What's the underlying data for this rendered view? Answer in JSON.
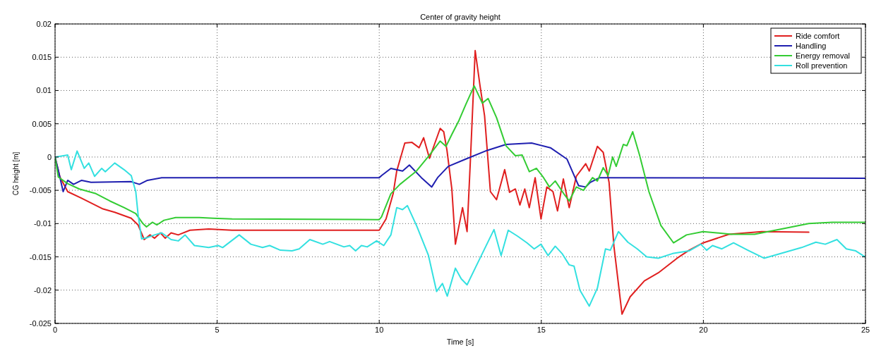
{
  "chart_data": {
    "type": "line",
    "title": "Center of gravity height",
    "xlabel": "Time [s]",
    "ylabel": "CG height [m]",
    "xlim": [
      0,
      25
    ],
    "ylim": [
      -0.025,
      0.02
    ],
    "xticks": [
      0,
      5,
      10,
      15,
      20,
      25
    ],
    "yticks": [
      -0.025,
      -0.02,
      -0.015,
      -0.01,
      -0.005,
      0,
      0.005,
      0.01,
      0.015,
      0.02
    ],
    "grid": true,
    "legend": "top right",
    "line_style": "solid",
    "marker": "none",
    "series": [
      {
        "name": "Ride comfort",
        "color": "#e01f1f",
        "x": [
          0,
          0.15,
          0.39,
          0.82,
          1.48,
          1.84,
          2.35,
          2.56,
          2.75,
          2.93,
          3.07,
          3.25,
          3.4,
          3.58,
          3.8,
          4.16,
          4.74,
          5.46,
          10,
          10.21,
          10.43,
          10.54,
          10.79,
          11.01,
          11.23,
          11.37,
          11.55,
          11.88,
          11.99,
          12.09,
          12.24,
          12.35,
          12.57,
          12.71,
          12.82,
          12.96,
          13.11,
          13.25,
          13.43,
          13.62,
          13.87,
          14.02,
          14.2,
          14.34,
          14.49,
          14.63,
          14.81,
          14.99,
          15.17,
          15.36,
          15.5,
          15.68,
          15.86,
          16.08,
          16.37,
          16.48,
          16.73,
          16.91,
          17.09,
          17.24,
          17.49,
          17.74,
          18.18,
          18.61,
          19.19,
          19.56,
          19.99,
          20.79,
          21.8,
          23.25
        ],
        "values": [
          0,
          -0.003,
          -0.0052,
          -0.0062,
          -0.0078,
          -0.0083,
          -0.0092,
          -0.0102,
          -0.0124,
          -0.0117,
          -0.0122,
          -0.0114,
          -0.0122,
          -0.0114,
          -0.0117,
          -0.011,
          -0.0108,
          -0.011,
          -0.011,
          -0.0093,
          -0.0055,
          -0.0021,
          0.0021,
          0.0022,
          0.0014,
          0.0029,
          -0.0002,
          0.0043,
          0.0038,
          0.001,
          -0.0048,
          -0.0131,
          -0.0076,
          -0.0112,
          0.0003,
          0.016,
          0.0107,
          0.0062,
          -0.0052,
          -0.0064,
          -0.0019,
          -0.0053,
          -0.0048,
          -0.0072,
          -0.0048,
          -0.0076,
          -0.0031,
          -0.0093,
          -0.0045,
          -0.0052,
          -0.0081,
          -0.0033,
          -0.0076,
          -0.0029,
          -0.001,
          -0.0021,
          0.0016,
          0.0007,
          -0.0038,
          -0.0134,
          -0.0236,
          -0.021,
          -0.0186,
          -0.0174,
          -0.0152,
          -0.014,
          -0.0129,
          -0.0116,
          -0.0112,
          -0.0113
        ]
      },
      {
        "name": "Handling",
        "color": "#1f1fb0",
        "x": [
          0,
          0.1,
          0.25,
          0.39,
          0.57,
          0.82,
          1.11,
          2.35,
          2.6,
          2.85,
          3.29,
          10,
          10.07,
          10.36,
          10.72,
          10.93,
          11.3,
          11.62,
          11.8,
          12.13,
          12.67,
          13.33,
          13.91,
          14.7,
          15.28,
          15.79,
          16.15,
          16.37,
          16.51,
          16.8,
          25
        ],
        "values": [
          0,
          -0.002,
          -0.0052,
          -0.0035,
          -0.0041,
          -0.0035,
          -0.0038,
          -0.0037,
          -0.0041,
          -0.0035,
          -0.0031,
          -0.0031,
          -0.0028,
          -0.0017,
          -0.0021,
          -0.0012,
          -0.0031,
          -0.0045,
          -0.0031,
          -0.0014,
          -0.0003,
          0.001,
          0.0019,
          0.0021,
          0.0014,
          -0.0003,
          -0.0043,
          -0.0045,
          -0.0038,
          -0.0031,
          -0.0032
        ]
      },
      {
        "name": "Energy removal",
        "color": "#33cc33",
        "x": [
          0,
          0.1,
          0.39,
          0.75,
          1.26,
          1.69,
          2.13,
          2.49,
          2.71,
          2.82,
          3,
          3.14,
          3.36,
          3.72,
          4.45,
          4.88,
          5.46,
          10,
          10.07,
          10.36,
          10.64,
          11.15,
          11.55,
          11.88,
          12.06,
          12.24,
          12.46,
          12.67,
          12.93,
          13.18,
          13.36,
          13.62,
          13.91,
          14.2,
          14.41,
          14.63,
          14.85,
          15.07,
          15.25,
          15.43,
          15.72,
          15.86,
          16.08,
          16.3,
          16.58,
          16.73,
          16.91,
          17.06,
          17.2,
          17.31,
          17.53,
          17.64,
          17.82,
          18.03,
          18.32,
          18.69,
          19.08,
          19.48,
          19.99,
          20.86,
          21.58,
          22.52,
          23.25,
          23.97,
          24.99
        ],
        "values": [
          0,
          -0.003,
          -0.004,
          -0.0048,
          -0.0055,
          -0.0066,
          -0.0076,
          -0.0085,
          -0.01,
          -0.0105,
          -0.0098,
          -0.0102,
          -0.0095,
          -0.0091,
          -0.0091,
          -0.0092,
          -0.0093,
          -0.0094,
          -0.009,
          -0.0055,
          -0.0041,
          -0.0021,
          0.0003,
          0.0024,
          0.0016,
          0.0034,
          0.0055,
          0.0079,
          0.0107,
          0.0081,
          0.0088,
          0.0059,
          0.0017,
          0.0002,
          0.0003,
          -0.0022,
          -0.0017,
          -0.0031,
          -0.0045,
          -0.0036,
          -0.0057,
          -0.0066,
          -0.0045,
          -0.005,
          -0.0031,
          -0.0036,
          -0.0016,
          -0.0028,
          0,
          -0.0014,
          0.0019,
          0.0017,
          0.0038,
          0.0003,
          -0.0052,
          -0.0103,
          -0.0129,
          -0.0117,
          -0.0112,
          -0.0116,
          -0.0116,
          -0.0107,
          -0.01,
          -0.0098,
          -0.0098
        ]
      },
      {
        "name": "Roll prevention",
        "color": "#33e0e0",
        "x": [
          0,
          0.39,
          0.5,
          0.68,
          0.9,
          1.04,
          1.22,
          1.44,
          1.55,
          1.84,
          2.13,
          2.35,
          2.49,
          2.56,
          2.67,
          2.85,
          3.07,
          3.29,
          3.58,
          3.8,
          4.01,
          4.3,
          4.74,
          5.03,
          5.17,
          5.68,
          6.04,
          6.4,
          6.62,
          6.95,
          7.31,
          7.53,
          7.86,
          8.26,
          8.47,
          8.91,
          9.09,
          9.27,
          9.45,
          9.63,
          9.92,
          10.14,
          10.36,
          10.54,
          10.72,
          10.87,
          11.16,
          11.52,
          11.77,
          11.95,
          12.1,
          12.35,
          12.53,
          12.71,
          12.97,
          13.54,
          13.76,
          13.98,
          14.27,
          14.56,
          14.78,
          14.99,
          15.21,
          15.43,
          15.64,
          15.86,
          16.01,
          16.19,
          16.48,
          16.73,
          16.98,
          17.13,
          17.38,
          17.67,
          17.96,
          18.25,
          18.61,
          19.05,
          19.56,
          19.92,
          20.1,
          20.28,
          20.57,
          20.93,
          21.37,
          21.87,
          22.16,
          22.52,
          23.03,
          23.47,
          23.76,
          24.12,
          24.41,
          24.7,
          24.99
        ],
        "values": [
          0,
          0.0003,
          -0.0019,
          0.0009,
          -0.0017,
          -0.0009,
          -0.0029,
          -0.0017,
          -0.0022,
          -0.0009,
          -0.0019,
          -0.0028,
          -0.0052,
          -0.0086,
          -0.0123,
          -0.0121,
          -0.0117,
          -0.0114,
          -0.0124,
          -0.0126,
          -0.0117,
          -0.0133,
          -0.0136,
          -0.0133,
          -0.0136,
          -0.0117,
          -0.0131,
          -0.0136,
          -0.0133,
          -0.014,
          -0.0141,
          -0.0138,
          -0.0124,
          -0.0131,
          -0.0127,
          -0.0135,
          -0.0133,
          -0.0141,
          -0.0133,
          -0.0135,
          -0.0126,
          -0.0133,
          -0.0117,
          -0.0076,
          -0.0079,
          -0.0073,
          -0.0104,
          -0.0148,
          -0.0202,
          -0.019,
          -0.0209,
          -0.0167,
          -0.0183,
          -0.0192,
          -0.0166,
          -0.0109,
          -0.0148,
          -0.011,
          -0.0119,
          -0.0129,
          -0.0138,
          -0.0131,
          -0.0148,
          -0.0134,
          -0.0145,
          -0.0162,
          -0.0164,
          -0.02,
          -0.0224,
          -0.0197,
          -0.0138,
          -0.014,
          -0.0112,
          -0.0128,
          -0.0138,
          -0.015,
          -0.0152,
          -0.0145,
          -0.0141,
          -0.0131,
          -0.014,
          -0.0133,
          -0.0138,
          -0.0129,
          -0.014,
          -0.0152,
          -0.0148,
          -0.0143,
          -0.0136,
          -0.0128,
          -0.0131,
          -0.0124,
          -0.0138,
          -0.0141,
          -0.015
        ]
      }
    ]
  }
}
